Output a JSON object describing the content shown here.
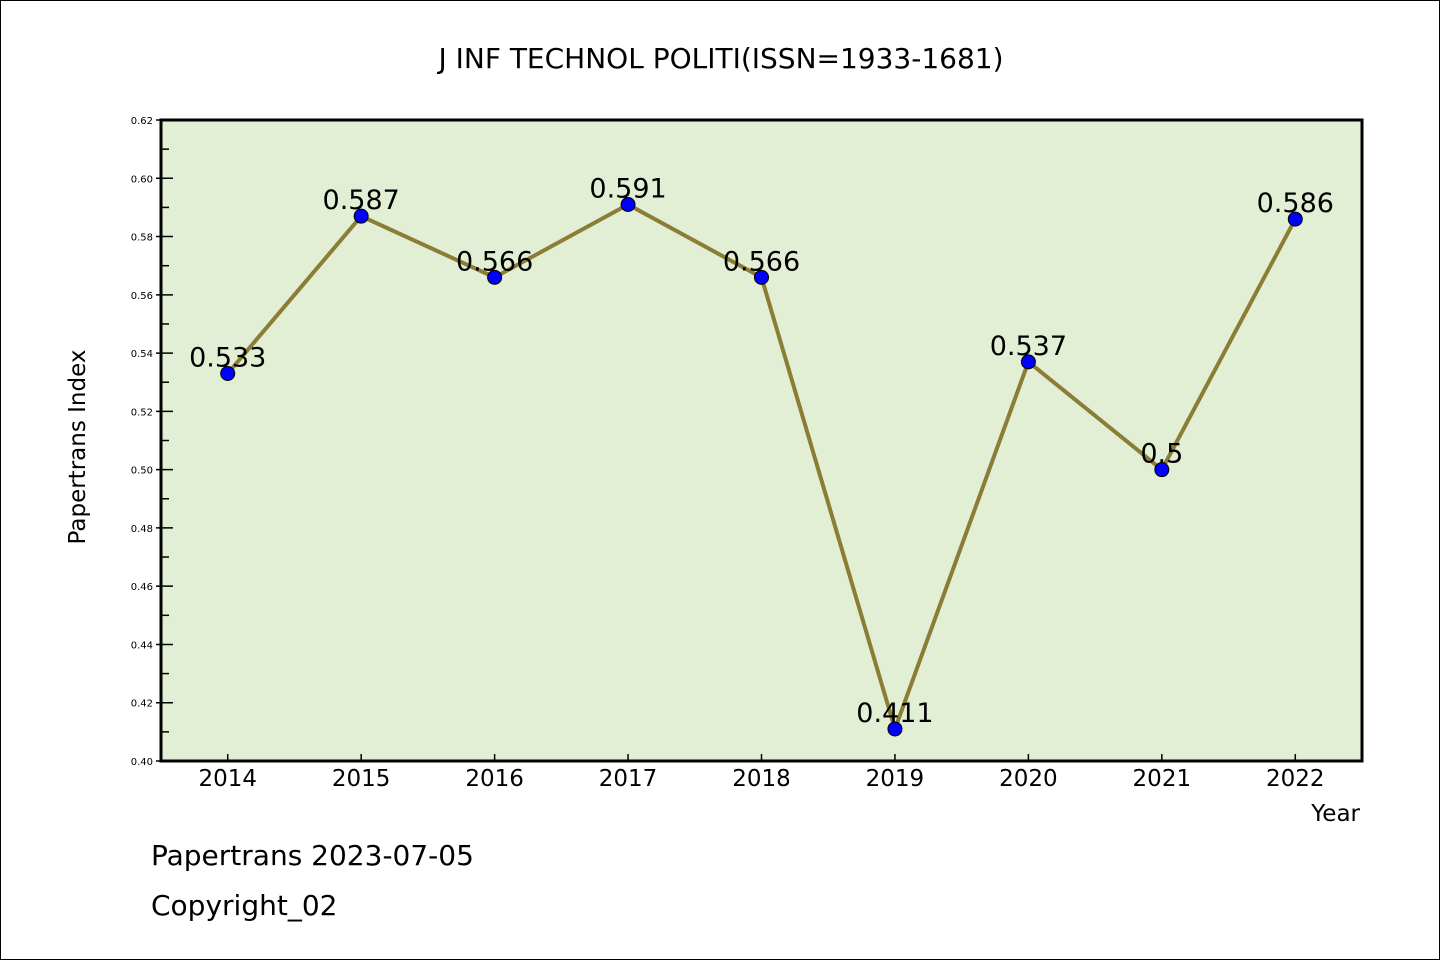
{
  "chart_data": {
    "type": "line",
    "title": "J INF TECHNOL POLITI(ISSN=1933-1681)",
    "xlabel": "Year",
    "ylabel": "Papertrans Index",
    "categories": [
      "2014",
      "2015",
      "2016",
      "2017",
      "2018",
      "2019",
      "2020",
      "2021",
      "2022"
    ],
    "series": [
      {
        "name": "Papertrans Index",
        "values": [
          0.533,
          0.587,
          0.566,
          0.591,
          0.566,
          0.411,
          0.537,
          0.5,
          0.586
        ]
      }
    ],
    "data_labels": [
      "0.533",
      "0.587",
      "0.566",
      "0.591",
      "0.566",
      "0.411",
      "0.537",
      "0.5",
      "0.586"
    ],
    "ylim": [
      0.4,
      0.62
    ],
    "yticks": [
      "0.40",
      "0.42",
      "0.44",
      "0.46",
      "0.48",
      "0.50",
      "0.52",
      "0.54",
      "0.56",
      "0.58",
      "0.60",
      "0.62"
    ],
    "grid": false,
    "legend": "none",
    "colors": {
      "plot_bg": "#e2efd5",
      "line": "#8b7d35",
      "marker": "#0000ff"
    }
  },
  "footer": {
    "line1": "Papertrans 2023-07-05",
    "line2": "Copyright_02"
  }
}
